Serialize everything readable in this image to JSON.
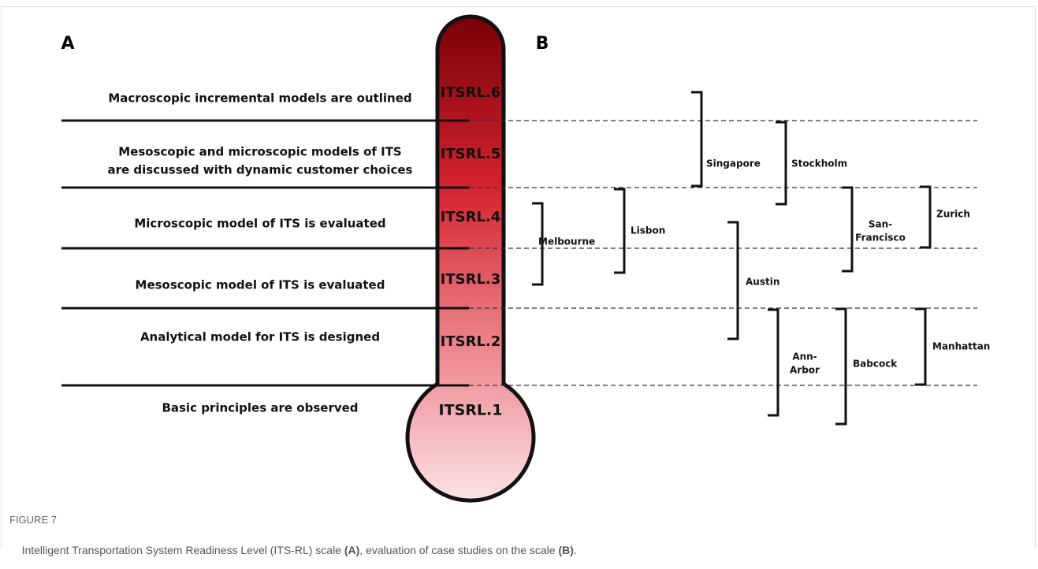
{
  "panels": {
    "left": "A",
    "right": "B"
  },
  "levels": [
    {
      "id": "ITSRL.6",
      "description": [
        "Macroscopic incremental models are outlined"
      ]
    },
    {
      "id": "ITSRL.5",
      "description": [
        "Mesoscopic and microscopic models of ITS",
        "are discussed with dynamic customer choices"
      ]
    },
    {
      "id": "ITSRL.4",
      "description": [
        "Microscopic model of ITS is evaluated"
      ]
    },
    {
      "id": "ITSRL.3",
      "description": [
        "Mesoscopic model of ITS is evaluated"
      ]
    },
    {
      "id": "ITSRL.2",
      "description": [
        "Analytical model for ITS is designed"
      ]
    },
    {
      "id": "ITSRL.1",
      "description": [
        "Basic principles are observed"
      ]
    }
  ],
  "case_studies": [
    {
      "label": [
        "Singapore"
      ]
    },
    {
      "label": [
        "Stockholm"
      ]
    },
    {
      "label": [
        "Melbourne"
      ]
    },
    {
      "label": [
        "Lisbon"
      ]
    },
    {
      "label": [
        "Austin"
      ]
    },
    {
      "label": [
        "San-",
        "Francisco"
      ]
    },
    {
      "label": [
        "Zurich"
      ]
    },
    {
      "label": [
        "Ann-",
        "Arbor"
      ]
    },
    {
      "label": [
        "Babcock"
      ]
    },
    {
      "label": [
        "Manhattan"
      ]
    }
  ],
  "caption": {
    "figure_number": "FIGURE 7",
    "parts": [
      "Intelligent Transportation System Readiness Level (ITS-RL) scale ",
      "(A)",
      ", evaluation of case studies on the scale ",
      "(B)",
      "."
    ]
  }
}
